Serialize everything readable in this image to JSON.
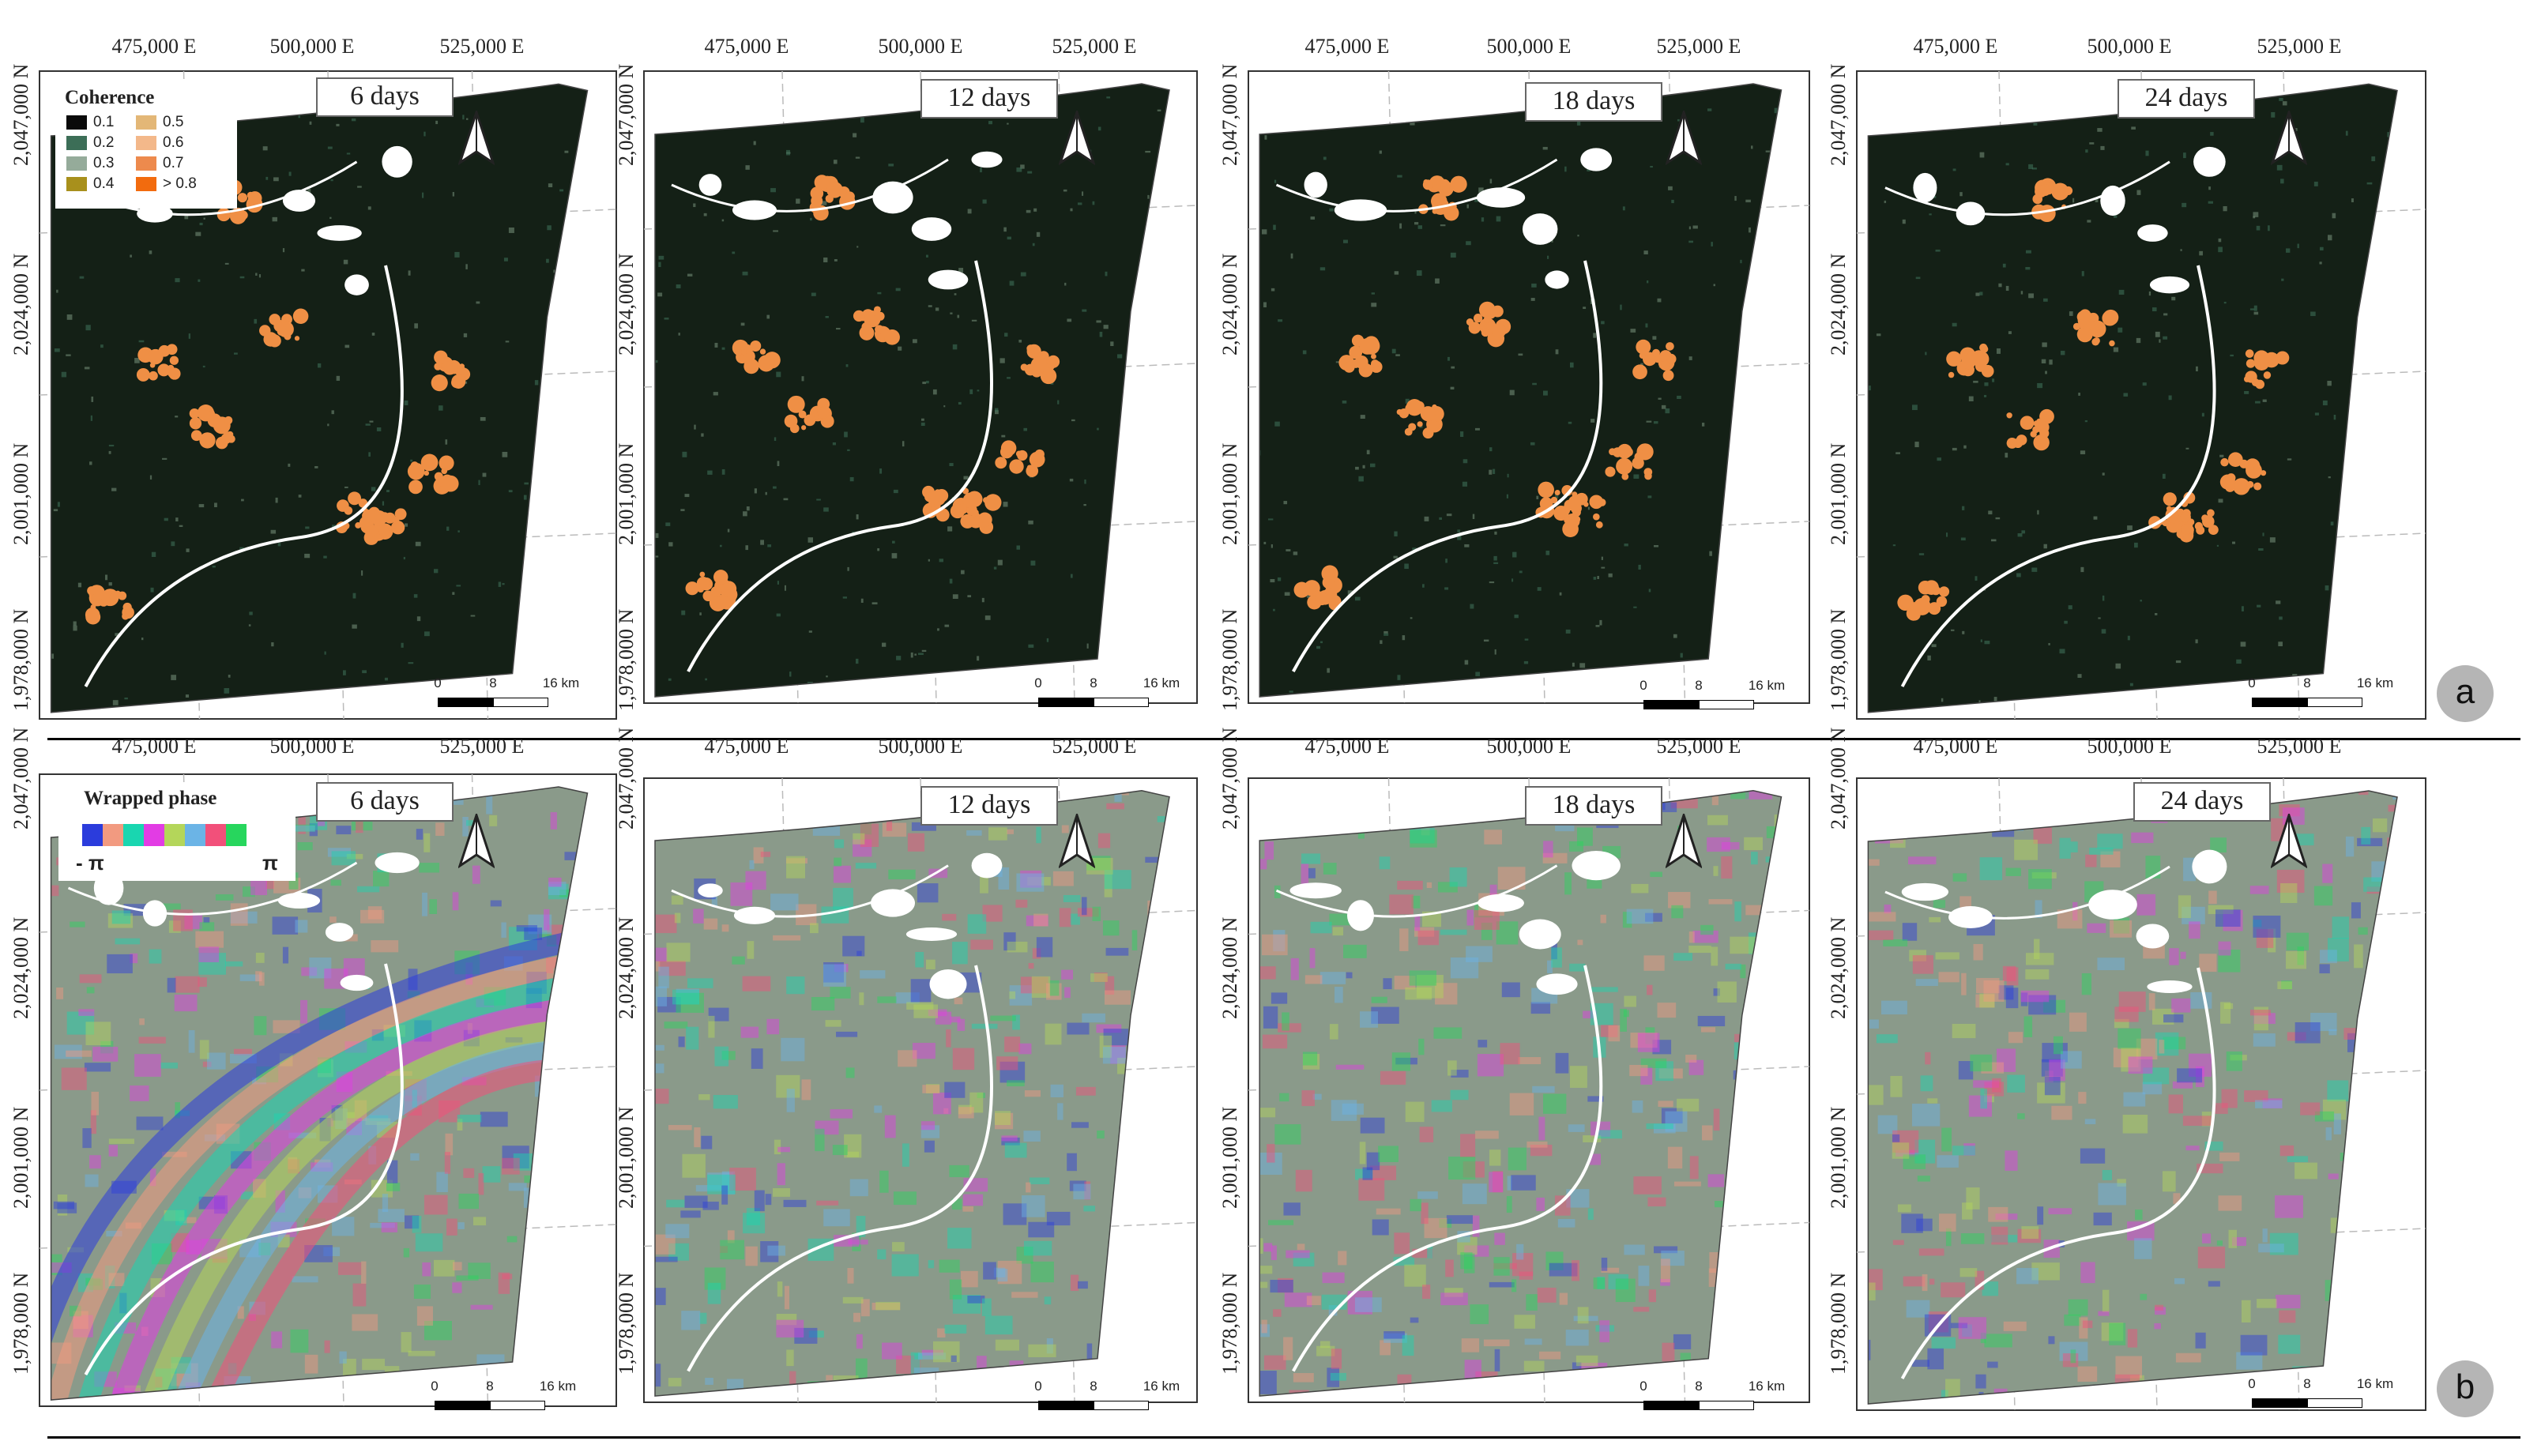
{
  "rows": [
    {
      "id": "a",
      "panels": [
        {
          "days": "6 days"
        },
        {
          "days": "12 days"
        },
        {
          "days": "18 days"
        },
        {
          "days": "24 days"
        }
      ],
      "legend": {
        "title": "Coherence",
        "items": [
          {
            "label": "0.1",
            "color": "#0a0a0a"
          },
          {
            "label": "0.2",
            "color": "#3c6e57"
          },
          {
            "label": "0.3",
            "color": "#95ab9a"
          },
          {
            "label": "0.4",
            "color": "#a8901c"
          },
          {
            "label": "0.5",
            "color": "#e3b777"
          },
          {
            "label": "0.6",
            "color": "#f3b88a"
          },
          {
            "label": "0.7",
            "color": "#ed8a4d"
          },
          {
            "label": "> 0.8",
            "color": "#f26b0e"
          }
        ]
      },
      "panel_letter": "a"
    },
    {
      "id": "b",
      "panels": [
        {
          "days": "6 days"
        },
        {
          "days": "12 days"
        },
        {
          "days": "18 days"
        },
        {
          "days": "24 days"
        }
      ],
      "legend": {
        "title": "Wrapped phase",
        "min_label": "- π",
        "max_label": "π",
        "colors": [
          "#2b3cdc",
          "#f29a80",
          "#19d6b0",
          "#e23ce4",
          "#b4d65a",
          "#6bb4e6",
          "#f2507a",
          "#27d65d"
        ]
      },
      "panel_letter": "b"
    }
  ],
  "axes": {
    "x_ticks": [
      "475,000 E",
      "500,000 E",
      "525,000 E"
    ],
    "y_ticks": [
      "2,047,000 N",
      "2,024,000 N",
      "2,001,000 N",
      "1,978,000 N"
    ]
  },
  "scale_bar": {
    "labels": [
      "0",
      "8",
      "16 km"
    ]
  },
  "colors": {
    "coherence_background": "#142016",
    "coherence_high": "#ef8f45",
    "water_white": "#ffffff"
  }
}
